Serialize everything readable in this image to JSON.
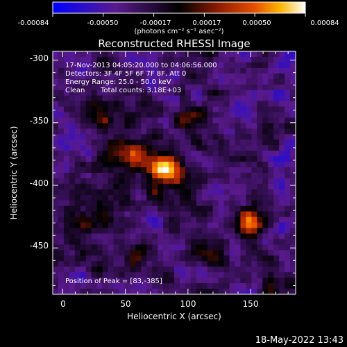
{
  "chart_data": {
    "type": "heatmap",
    "title": "Reconstructed RHESSI Image",
    "xlabel": "Heliocentric X (arcsec)",
    "ylabel": "Heliocentric Y (arcsec)",
    "xlim": [
      -8,
      186
    ],
    "ylim": [
      -487,
      -293
    ],
    "x_ticks": [
      0,
      50,
      100,
      150
    ],
    "y_ticks": [
      -300,
      -350,
      -400,
      -450
    ],
    "colorbar": {
      "ticks": [
        "-0.00084",
        "-0.00050",
        "-0.00017",
        "0.00017",
        "0.00050",
        "0.00084"
      ],
      "range": [
        -0.00084,
        0.00084
      ],
      "unit_label": "(photons cm⁻² s⁻¹ asec⁻²)",
      "colors": [
        "#0000ff",
        "#5a1a8e",
        "#000000",
        "#8a1a00",
        "#e65000",
        "#ffb400",
        "#ffffff"
      ]
    },
    "annotations": {
      "time_range": "17-Nov-2013 04:05:20.000 to 04:06:56.000",
      "detectors": "Detectors: 3F 4F 5F 6F 7F 8F, Att 0",
      "energy": "Energy Range: 25.0 - 50.0 keV",
      "clean_method": "Clean",
      "total_counts": "Total counts: 3.18E+03",
      "peak": "Position of Peak = [83,-385]"
    },
    "peak_position": [
      83,
      -385
    ],
    "sources": [
      {
        "x": 83,
        "y": -385,
        "value": 0.00084
      },
      {
        "x": 55,
        "y": -375,
        "value": 0.00065
      },
      {
        "x": 150,
        "y": -430,
        "value": 0.0007
      },
      {
        "x": 100,
        "y": -345,
        "value": 0.0004
      },
      {
        "x": 30,
        "y": -345,
        "value": 0.00035
      },
      {
        "x": 20,
        "y": -430,
        "value": 0.0003
      },
      {
        "x": 60,
        "y": -455,
        "value": 0.00035
      },
      {
        "x": 120,
        "y": -455,
        "value": 0.0003
      },
      {
        "x": 175,
        "y": -485,
        "value": 0.00035
      }
    ]
  },
  "footer": {
    "date": "18-May-2022 13:43"
  }
}
